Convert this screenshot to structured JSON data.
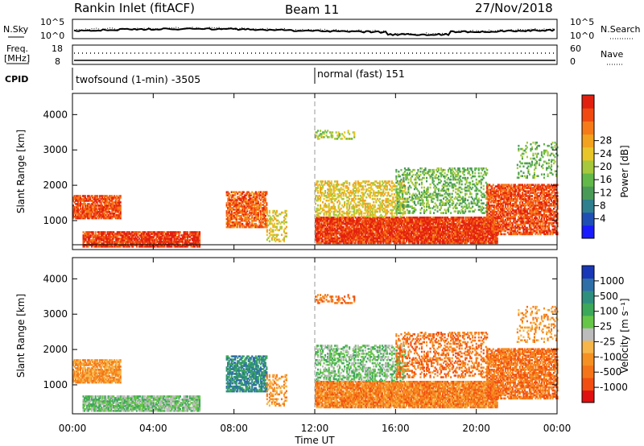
{
  "header": {
    "station": "Rankin Inlet (fitACF)",
    "beam": "Beam 11",
    "date": "27/Nov/2018"
  },
  "summary": {
    "nsky_label": "N.Sky",
    "nsky_ticks": [
      "10^5",
      "10^0"
    ],
    "nsearch_label": "N.Search",
    "nsearch_ticks": [
      "10^5",
      "10^0"
    ],
    "freq_label": "Freq.",
    "freq_unit": "[MHz]",
    "freq_ticks": [
      "18",
      "8"
    ],
    "nave_label": "Nave",
    "nave_ticks": [
      "60",
      "0"
    ],
    "cpid_label": "CPID",
    "cpid_segments": [
      {
        "label": "twofsound (1-min) -3505",
        "start_hour": 0
      },
      {
        "label": "normal (fast) 151",
        "start_hour": 12
      }
    ]
  },
  "chart_data": [
    {
      "type": "heatmap",
      "title": "",
      "quantity": "Power",
      "xlabel": "",
      "ylabel": "Slant Range [km]",
      "x_range_hours": [
        0,
        24
      ],
      "x_ticks": [
        "00:00",
        "04:00",
        "08:00",
        "12:00",
        "16:00",
        "20:00",
        "00:00"
      ],
      "y_range_km": [
        180,
        4600
      ],
      "y_ticks": [
        1000,
        2000,
        3000,
        4000
      ],
      "colorbar": {
        "label": "Power [dB]",
        "ticks": [
          "4",
          "8",
          "12",
          "16",
          "20",
          "24",
          "28"
        ],
        "colors": [
          "#1a1aff",
          "#1f4fb4",
          "#2f7f8f",
          "#4a9a57",
          "#62b848",
          "#a6c83c",
          "#e8c62a",
          "#f2a21e",
          "#f77a18",
          "#f04a10",
          "#e22010"
        ]
      },
      "echo_regions": [
        {
          "t0": 0.0,
          "t1": 2.4,
          "r0": 1050,
          "r1": 1700,
          "density": 0.8,
          "level": 9
        },
        {
          "t0": 0.5,
          "t1": 6.3,
          "r0": 250,
          "r1": 700,
          "density": 0.85,
          "level": 9.5
        },
        {
          "t0": 7.6,
          "t1": 9.6,
          "r0": 800,
          "r1": 1800,
          "density": 0.7,
          "level": 8.5
        },
        {
          "t0": 9.6,
          "t1": 10.6,
          "r0": 400,
          "r1": 1300,
          "density": 0.35,
          "level": 6
        },
        {
          "t0": 12.0,
          "t1": 21.0,
          "r0": 350,
          "r1": 1100,
          "density": 0.9,
          "level": 9.5
        },
        {
          "t0": 12.0,
          "t1": 16.5,
          "r0": 1100,
          "r1": 2100,
          "density": 0.45,
          "level": 6
        },
        {
          "t0": 16.0,
          "t1": 20.5,
          "r0": 1200,
          "r1": 2500,
          "density": 0.35,
          "level": 4
        },
        {
          "t0": 20.5,
          "t1": 24.0,
          "r0": 600,
          "r1": 2000,
          "density": 0.7,
          "level": 9
        },
        {
          "t0": 12.0,
          "t1": 14.0,
          "r0": 3300,
          "r1": 3550,
          "density": 0.35,
          "level": 5
        },
        {
          "t0": 22.0,
          "t1": 24.0,
          "r0": 2200,
          "r1": 3200,
          "density": 0.2,
          "level": 4
        }
      ]
    },
    {
      "type": "heatmap",
      "title": "",
      "quantity": "Velocity",
      "xlabel": "Time UT",
      "ylabel": "Slant Range [km]",
      "x_range_hours": [
        0,
        24
      ],
      "x_ticks": [
        "00:00",
        "04:00",
        "08:00",
        "12:00",
        "16:00",
        "20:00",
        "00:00"
      ],
      "y_range_km": [
        180,
        4600
      ],
      "y_ticks": [
        1000,
        2000,
        3000,
        4000
      ],
      "colorbar": {
        "label": "Velocity [m s⁻¹]",
        "ticks": [
          "1000",
          "500",
          "100",
          "25",
          "-25",
          "-100",
          "-500",
          "-1000"
        ],
        "colors": [
          "#1838b8",
          "#2f6fa8",
          "#2f8f7f",
          "#3ca85a",
          "#66c648",
          "#bcbcbc",
          "#f6b64a",
          "#f59022",
          "#f57418",
          "#f24e12",
          "#e01010"
        ]
      },
      "echo_regions": [
        {
          "t0": 0.0,
          "t1": 2.4,
          "r0": 1050,
          "r1": 1700,
          "density": 0.8,
          "level": 7
        },
        {
          "t0": 0.5,
          "t1": 6.3,
          "r0": 250,
          "r1": 700,
          "density": 0.85,
          "level": 4
        },
        {
          "t0": 7.6,
          "t1": 9.6,
          "r0": 800,
          "r1": 1800,
          "density": 0.7,
          "level": 2
        },
        {
          "t0": 9.6,
          "t1": 10.6,
          "r0": 400,
          "r1": 1300,
          "density": 0.35,
          "level": 7
        },
        {
          "t0": 12.0,
          "t1": 21.0,
          "r0": 350,
          "r1": 1100,
          "density": 0.9,
          "level": 7.5
        },
        {
          "t0": 12.0,
          "t1": 16.5,
          "r0": 1100,
          "r1": 2100,
          "density": 0.45,
          "level": 4
        },
        {
          "t0": 16.0,
          "t1": 20.5,
          "r0": 1200,
          "r1": 2500,
          "density": 0.35,
          "level": 8
        },
        {
          "t0": 20.5,
          "t1": 24.0,
          "r0": 600,
          "r1": 2000,
          "density": 0.7,
          "level": 8
        },
        {
          "t0": 12.0,
          "t1": 14.0,
          "r0": 3300,
          "r1": 3550,
          "density": 0.35,
          "level": 8
        },
        {
          "t0": 22.0,
          "t1": 24.0,
          "r0": 2200,
          "r1": 3200,
          "density": 0.2,
          "level": 7
        }
      ]
    }
  ]
}
